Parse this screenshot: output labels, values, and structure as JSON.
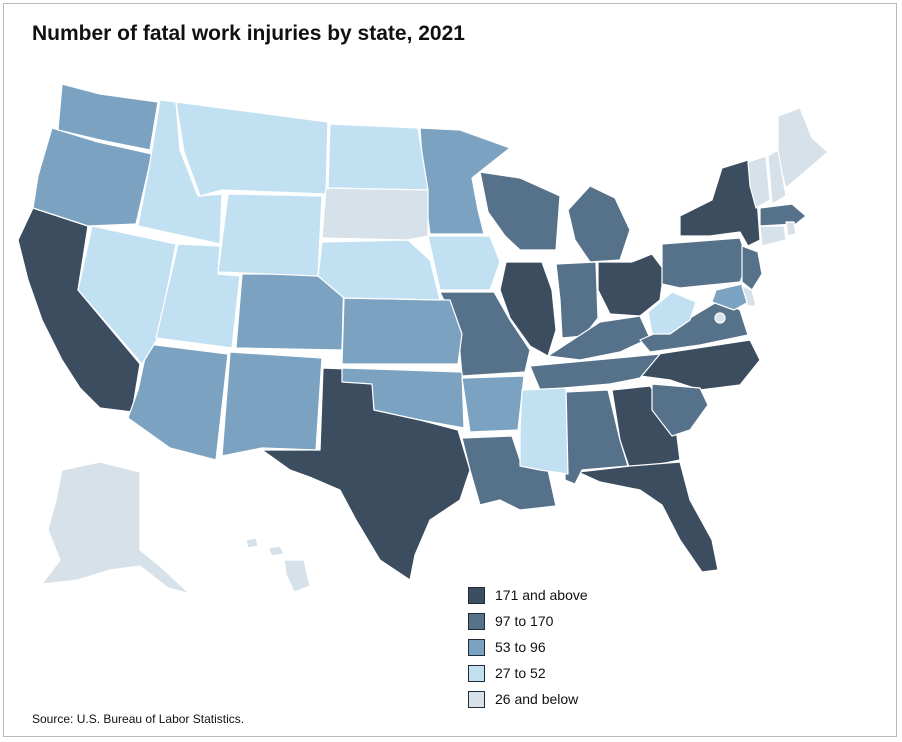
{
  "title": "Number of fatal work injuries by state, 2021",
  "source": "Source: U.S. Bureau of Labor Statistics.",
  "legend": [
    {
      "label": "171 and above",
      "color": "#3b4d5f"
    },
    {
      "label": "97 to 170",
      "color": "#56718a"
    },
    {
      "label": "53 to 96",
      "color": "#7ba3c1"
    },
    {
      "label": "27 to 52",
      "color": "#c1e1f3"
    },
    {
      "label": "26 and below",
      "color": "#d6e1e9"
    }
  ]
}
